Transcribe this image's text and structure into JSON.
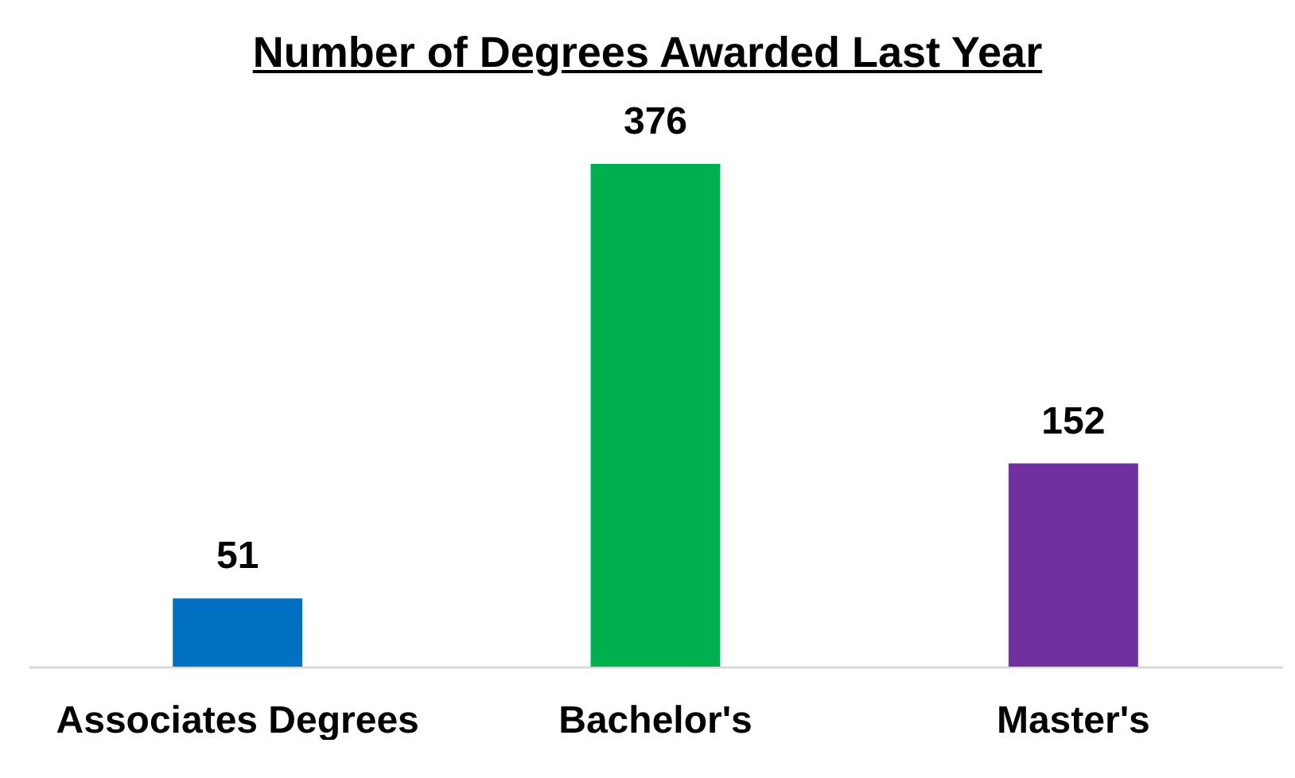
{
  "chart_data": {
    "type": "bar",
    "title": "Number of Degrees Awarded Last Year",
    "categories": [
      "Associates Degrees",
      "Bachelor's",
      "Master's"
    ],
    "values": [
      51,
      376,
      152
    ],
    "colors": [
      "#0070c0",
      "#00b050",
      "#7030a0"
    ],
    "data_labels": true
  }
}
